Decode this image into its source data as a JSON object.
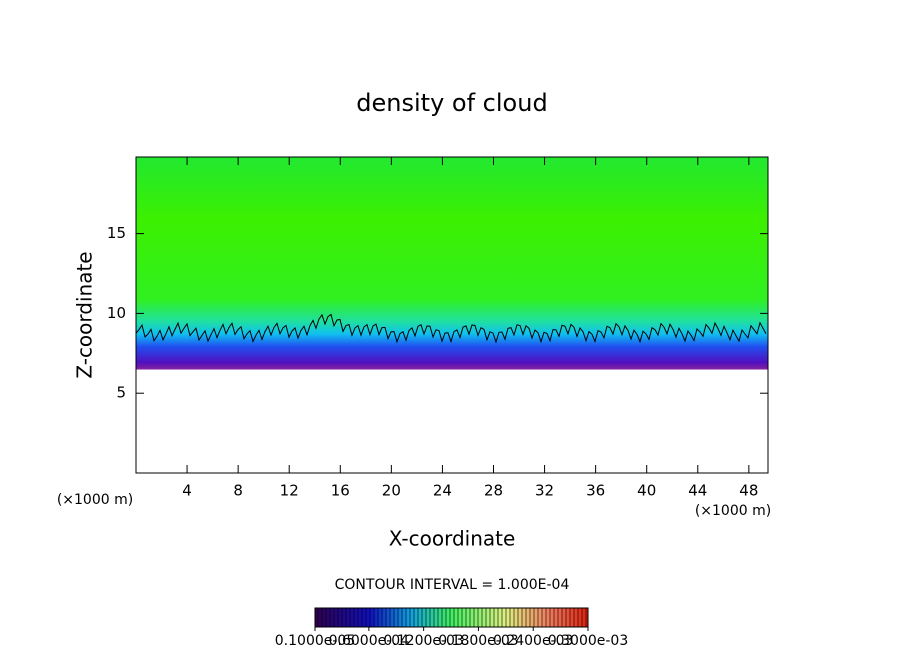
{
  "chart_data": {
    "type": "heatmap",
    "title": "density of cloud",
    "x_label": "X-coordinate",
    "y_label": "Z-coordinate",
    "xlim": [
      0,
      49.5
    ],
    "ylim": [
      0,
      19.8
    ],
    "xticks": [
      4,
      8,
      12,
      16,
      20,
      24,
      28,
      32,
      36,
      40,
      44,
      48
    ],
    "yticks": [
      5,
      10,
      15
    ],
    "annotations": [
      "(×1000 m)",
      "(×1000 m)",
      "CONTOUR INTERVAL = 1.000E-04"
    ],
    "colorbar": {
      "lim": [
        1e-06,
        0.0003
      ],
      "ticks": [
        {
          "value": 1e-06,
          "label": "0.1000e-05"
        },
        {
          "value": 6e-05,
          "label": "0.6000e-04"
        },
        {
          "value": 0.00012,
          "label": "0.1200e-03"
        },
        {
          "value": 0.00018,
          "label": "0.1800e-03"
        },
        {
          "value": 0.00024,
          "label": "0.2400e-03"
        },
        {
          "value": 0.0003,
          "label": "0.3000e-03"
        }
      ]
    }
  }
}
